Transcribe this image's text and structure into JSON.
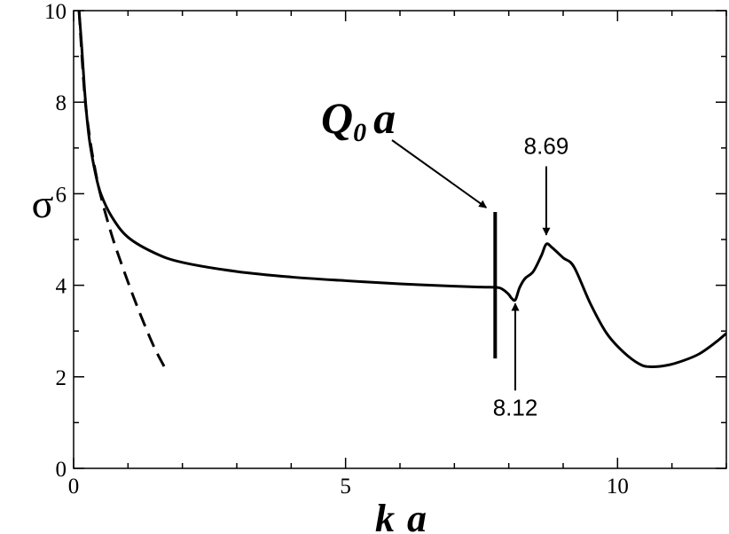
{
  "chart_data": {
    "type": "line",
    "xlabel": "k a",
    "ylabel": "σ",
    "xlim": [
      0,
      12
    ],
    "ylim": [
      0,
      10
    ],
    "xticks": [
      0,
      5,
      10
    ],
    "yticks": [
      0,
      2,
      4,
      6,
      8,
      10
    ],
    "x_minor_step": 1,
    "y_minor_step": 1,
    "grid": false,
    "series": [
      {
        "style": "solid",
        "x": [
          0.1,
          0.15,
          0.2,
          0.25,
          0.3,
          0.4,
          0.5,
          0.7,
          1.0,
          1.5,
          2.0,
          3.0,
          4.0,
          5.0,
          6.0,
          7.0,
          7.5,
          7.8,
          7.9,
          8.0,
          8.05,
          8.12,
          8.2,
          8.3,
          8.45,
          8.6,
          8.69,
          8.8,
          9.0,
          9.2,
          9.5,
          9.8,
          10.1,
          10.4,
          10.6,
          10.9,
          11.2,
          11.5,
          11.8,
          12.0
        ],
        "y": [
          10.0,
          9.2,
          8.3,
          7.6,
          7.1,
          6.45,
          6.0,
          5.5,
          5.05,
          4.7,
          4.5,
          4.3,
          4.18,
          4.1,
          4.03,
          3.98,
          3.96,
          3.95,
          3.9,
          3.8,
          3.72,
          3.68,
          3.95,
          4.15,
          4.3,
          4.65,
          4.9,
          4.82,
          4.6,
          4.4,
          3.6,
          2.95,
          2.55,
          2.28,
          2.22,
          2.25,
          2.35,
          2.5,
          2.75,
          2.95
        ]
      },
      {
        "style": "dashed",
        "x": [
          0.1,
          0.2,
          0.3,
          0.4,
          0.5,
          0.7,
          0.9,
          1.1,
          1.3,
          1.5,
          1.7
        ],
        "y": [
          10.0,
          8.2,
          7.2,
          6.5,
          5.95,
          5.1,
          4.4,
          3.75,
          3.15,
          2.6,
          2.15
        ]
      }
    ],
    "vertical_marker": {
      "x": 7.75,
      "y_from": 2.4,
      "y_to": 5.6,
      "label_main": "Q",
      "label_sub": "0",
      "label_tail": "a"
    },
    "annotations": [
      {
        "text": "8.69",
        "x": 8.69,
        "y_tip": 5.1,
        "y_tail": 6.6,
        "direction": "down"
      },
      {
        "text": "8.12",
        "x": 8.12,
        "y_tip": 3.6,
        "y_tail": 1.7,
        "direction": "up"
      }
    ],
    "axis_title_parts": {
      "x_first": "k",
      "x_second": "a"
    }
  }
}
